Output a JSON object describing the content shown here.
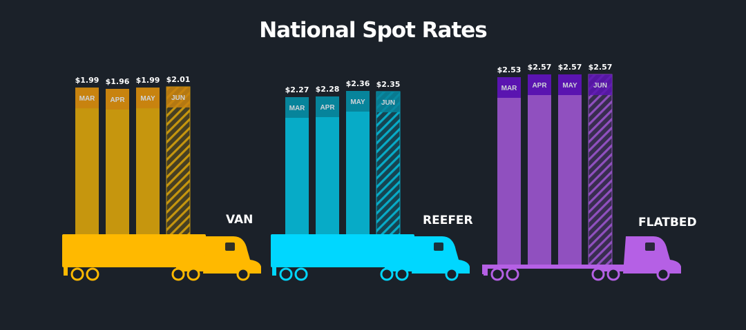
{
  "chart_data": {
    "type": "bar",
    "title": "National Spot Rates",
    "categories": [
      "MAR",
      "APR",
      "MAY",
      "JUN"
    ],
    "projected_category": "JUN",
    "groups": [
      {
        "name": "VAN",
        "values": [
          1.99,
          1.96,
          1.99,
          2.01
        ],
        "labels": [
          "$1.99",
          "$1.96",
          "$1.99",
          "$2.01"
        ],
        "colors": {
          "bar": "#c6960e",
          "cap": "#c8830f",
          "truck": "#ffb900"
        }
      },
      {
        "name": "REEFER",
        "values": [
          2.27,
          2.28,
          2.36,
          2.35
        ],
        "labels": [
          "$2.27",
          "$2.28",
          "$2.36",
          "$2.35"
        ],
        "colors": {
          "bar": "#07abc7",
          "cap": "#07849b",
          "truck": "#00d7ff"
        }
      },
      {
        "name": "FLATBED",
        "values": [
          2.53,
          2.57,
          2.57,
          2.57
        ],
        "labels": [
          "$2.53",
          "$2.57",
          "$2.57",
          "$2.57"
        ],
        "colors": {
          "bar": "#9050bf",
          "cap": "#5a14b0",
          "truck": "#b560e5"
        }
      }
    ]
  },
  "colors": {
    "background": "#1b2129",
    "text": "#ffffff",
    "month_label": "#cfd3d8"
  }
}
